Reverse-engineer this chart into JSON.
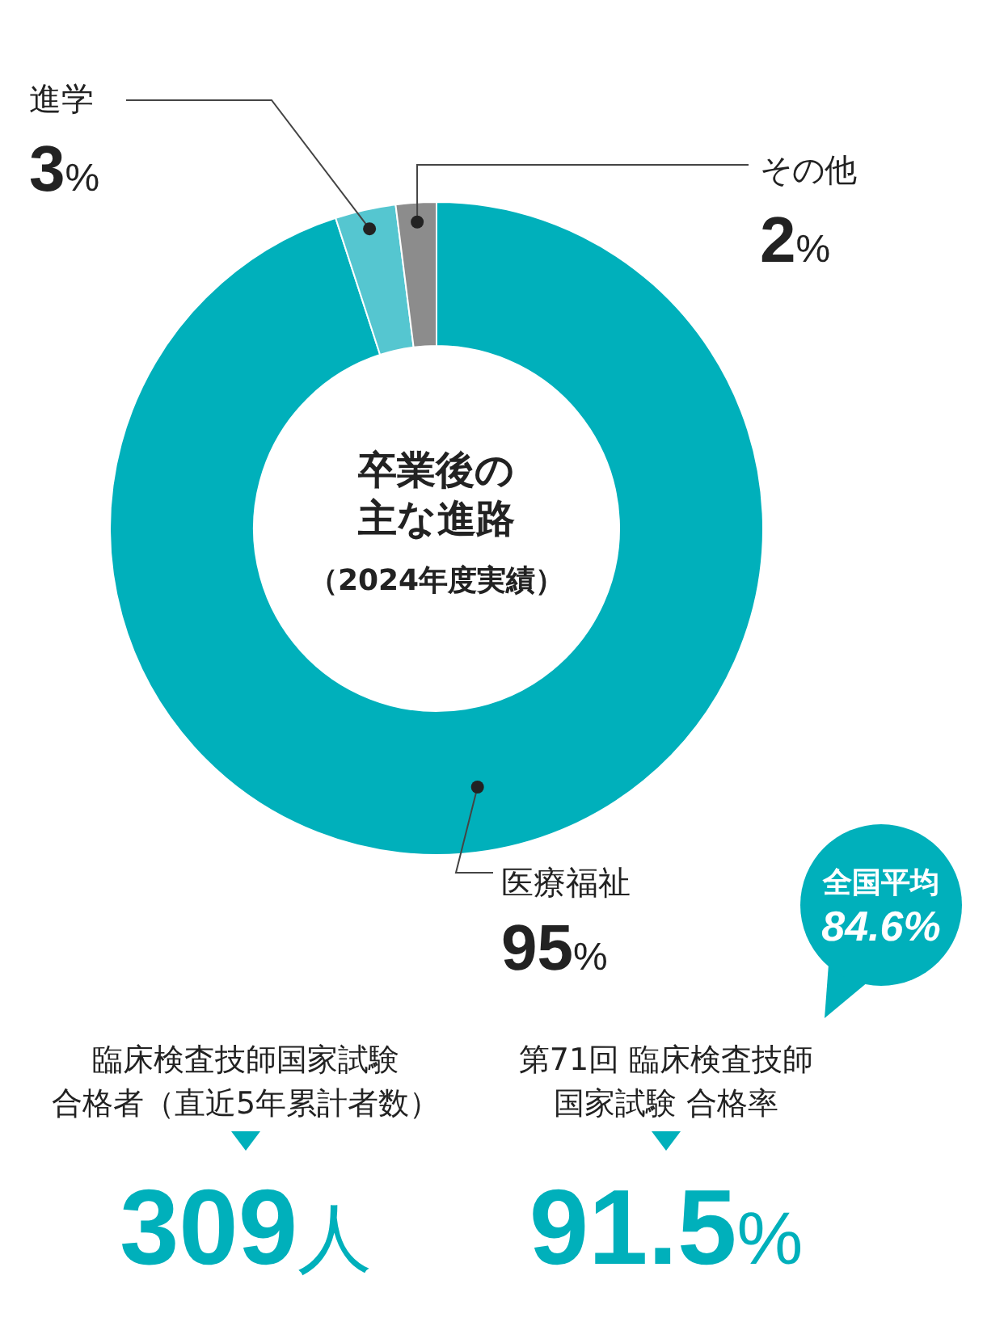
{
  "chart_data": [
    {
      "type": "donut",
      "title": "卒業後の主な進路",
      "subtitle": "（2024年度実績）",
      "categories": [
        "医療福祉",
        "進学",
        "その他"
      ],
      "values": [
        95,
        3,
        2
      ],
      "colors": [
        "#00b0bb",
        "#55c6d0",
        "#8c8c8c"
      ],
      "value_labels": [
        "95%",
        "3%",
        "2%"
      ]
    },
    {
      "type": "other",
      "title": "臨床検査技師国家試験合格者（直近5年累計者数）",
      "annotations": [
        "309人"
      ]
    },
    {
      "type": "other",
      "title": "第71回 臨床検査技師国家試験 合格率",
      "annotations": [
        "91.5%",
        "全国平均",
        "84.6%"
      ]
    }
  ]
}
